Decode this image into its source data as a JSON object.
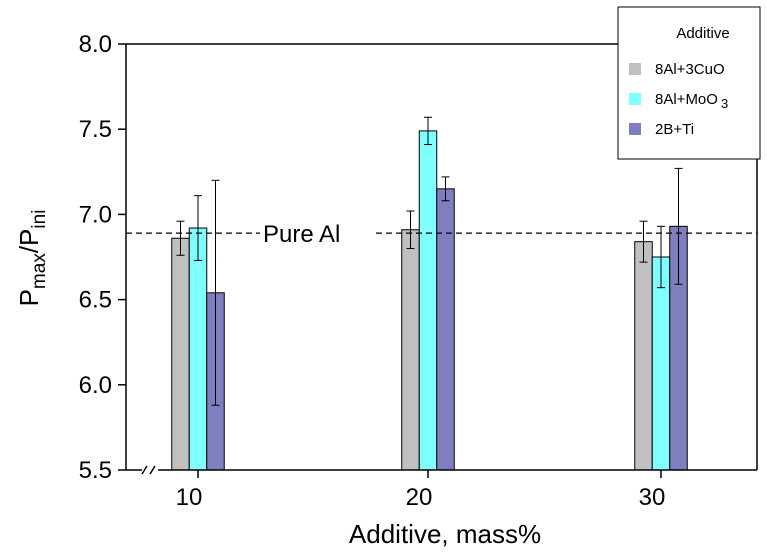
{
  "chart_data": {
    "type": "bar",
    "categories": [
      "10",
      "20",
      "30"
    ],
    "xlabel": "Additive, mass%",
    "ylabel": {
      "base": "P",
      "sub1": "max",
      "sep": "/P",
      "sub2": "ini"
    },
    "ylim": [
      5.5,
      8.0
    ],
    "yticks": [
      "5.5",
      "6.0",
      "6.5",
      "7.0",
      "7.5",
      "8.0"
    ],
    "grid": false,
    "legend": {
      "title": "Additive",
      "placement": "top-right"
    },
    "series": [
      {
        "name": "8Al+3CuO",
        "name_parts": [
          "8Al+3CuO",
          ""
        ],
        "color": "#c0c0c0",
        "values": [
          6.86,
          6.91,
          6.84
        ],
        "errors": [
          0.1,
          0.11,
          0.12
        ]
      },
      {
        "name": "8Al+MoO3",
        "name_parts": [
          "8Al+MoO",
          "3"
        ],
        "color": "#80ffff",
        "values": [
          6.92,
          7.49,
          6.75
        ],
        "errors": [
          0.19,
          0.08,
          0.18
        ]
      },
      {
        "name": "2B+Ti",
        "name_parts": [
          "2B+Ti",
          ""
        ],
        "color": "#7f7fbf",
        "values": [
          6.54,
          7.15,
          6.93
        ],
        "errors": [
          0.66,
          0.07,
          0.34
        ]
      }
    ],
    "reference_line": {
      "label": "Pure Al",
      "value": 6.89,
      "style": "dashed"
    }
  }
}
